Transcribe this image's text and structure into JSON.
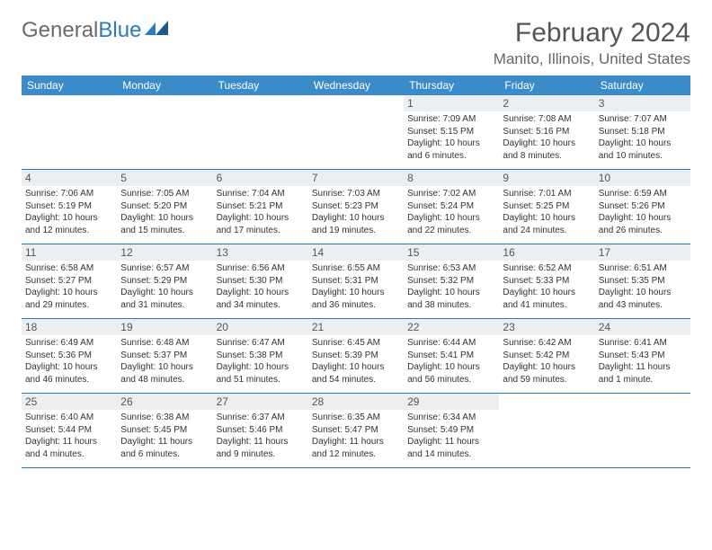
{
  "brand": {
    "part1": "General",
    "part2": "Blue"
  },
  "title": {
    "month_year": "February 2024",
    "location": "Manito, Illinois, United States"
  },
  "colors": {
    "header_bg": "#3b8bc8",
    "accent": "#2c7bbf",
    "daynum_bg": "#eceff1"
  },
  "weekdays": [
    "Sunday",
    "Monday",
    "Tuesday",
    "Wednesday",
    "Thursday",
    "Friday",
    "Saturday"
  ],
  "weeks": [
    [
      {
        "n": "",
        "sr": "",
        "ss": "",
        "dl1": "",
        "dl2": ""
      },
      {
        "n": "",
        "sr": "",
        "ss": "",
        "dl1": "",
        "dl2": ""
      },
      {
        "n": "",
        "sr": "",
        "ss": "",
        "dl1": "",
        "dl2": ""
      },
      {
        "n": "",
        "sr": "",
        "ss": "",
        "dl1": "",
        "dl2": ""
      },
      {
        "n": "1",
        "sr": "Sunrise: 7:09 AM",
        "ss": "Sunset: 5:15 PM",
        "dl1": "Daylight: 10 hours",
        "dl2": "and 6 minutes."
      },
      {
        "n": "2",
        "sr": "Sunrise: 7:08 AM",
        "ss": "Sunset: 5:16 PM",
        "dl1": "Daylight: 10 hours",
        "dl2": "and 8 minutes."
      },
      {
        "n": "3",
        "sr": "Sunrise: 7:07 AM",
        "ss": "Sunset: 5:18 PM",
        "dl1": "Daylight: 10 hours",
        "dl2": "and 10 minutes."
      }
    ],
    [
      {
        "n": "4",
        "sr": "Sunrise: 7:06 AM",
        "ss": "Sunset: 5:19 PM",
        "dl1": "Daylight: 10 hours",
        "dl2": "and 12 minutes."
      },
      {
        "n": "5",
        "sr": "Sunrise: 7:05 AM",
        "ss": "Sunset: 5:20 PM",
        "dl1": "Daylight: 10 hours",
        "dl2": "and 15 minutes."
      },
      {
        "n": "6",
        "sr": "Sunrise: 7:04 AM",
        "ss": "Sunset: 5:21 PM",
        "dl1": "Daylight: 10 hours",
        "dl2": "and 17 minutes."
      },
      {
        "n": "7",
        "sr": "Sunrise: 7:03 AM",
        "ss": "Sunset: 5:23 PM",
        "dl1": "Daylight: 10 hours",
        "dl2": "and 19 minutes."
      },
      {
        "n": "8",
        "sr": "Sunrise: 7:02 AM",
        "ss": "Sunset: 5:24 PM",
        "dl1": "Daylight: 10 hours",
        "dl2": "and 22 minutes."
      },
      {
        "n": "9",
        "sr": "Sunrise: 7:01 AM",
        "ss": "Sunset: 5:25 PM",
        "dl1": "Daylight: 10 hours",
        "dl2": "and 24 minutes."
      },
      {
        "n": "10",
        "sr": "Sunrise: 6:59 AM",
        "ss": "Sunset: 5:26 PM",
        "dl1": "Daylight: 10 hours",
        "dl2": "and 26 minutes."
      }
    ],
    [
      {
        "n": "11",
        "sr": "Sunrise: 6:58 AM",
        "ss": "Sunset: 5:27 PM",
        "dl1": "Daylight: 10 hours",
        "dl2": "and 29 minutes."
      },
      {
        "n": "12",
        "sr": "Sunrise: 6:57 AM",
        "ss": "Sunset: 5:29 PM",
        "dl1": "Daylight: 10 hours",
        "dl2": "and 31 minutes."
      },
      {
        "n": "13",
        "sr": "Sunrise: 6:56 AM",
        "ss": "Sunset: 5:30 PM",
        "dl1": "Daylight: 10 hours",
        "dl2": "and 34 minutes."
      },
      {
        "n": "14",
        "sr": "Sunrise: 6:55 AM",
        "ss": "Sunset: 5:31 PM",
        "dl1": "Daylight: 10 hours",
        "dl2": "and 36 minutes."
      },
      {
        "n": "15",
        "sr": "Sunrise: 6:53 AM",
        "ss": "Sunset: 5:32 PM",
        "dl1": "Daylight: 10 hours",
        "dl2": "and 38 minutes."
      },
      {
        "n": "16",
        "sr": "Sunrise: 6:52 AM",
        "ss": "Sunset: 5:33 PM",
        "dl1": "Daylight: 10 hours",
        "dl2": "and 41 minutes."
      },
      {
        "n": "17",
        "sr": "Sunrise: 6:51 AM",
        "ss": "Sunset: 5:35 PM",
        "dl1": "Daylight: 10 hours",
        "dl2": "and 43 minutes."
      }
    ],
    [
      {
        "n": "18",
        "sr": "Sunrise: 6:49 AM",
        "ss": "Sunset: 5:36 PM",
        "dl1": "Daylight: 10 hours",
        "dl2": "and 46 minutes."
      },
      {
        "n": "19",
        "sr": "Sunrise: 6:48 AM",
        "ss": "Sunset: 5:37 PM",
        "dl1": "Daylight: 10 hours",
        "dl2": "and 48 minutes."
      },
      {
        "n": "20",
        "sr": "Sunrise: 6:47 AM",
        "ss": "Sunset: 5:38 PM",
        "dl1": "Daylight: 10 hours",
        "dl2": "and 51 minutes."
      },
      {
        "n": "21",
        "sr": "Sunrise: 6:45 AM",
        "ss": "Sunset: 5:39 PM",
        "dl1": "Daylight: 10 hours",
        "dl2": "and 54 minutes."
      },
      {
        "n": "22",
        "sr": "Sunrise: 6:44 AM",
        "ss": "Sunset: 5:41 PM",
        "dl1": "Daylight: 10 hours",
        "dl2": "and 56 minutes."
      },
      {
        "n": "23",
        "sr": "Sunrise: 6:42 AM",
        "ss": "Sunset: 5:42 PM",
        "dl1": "Daylight: 10 hours",
        "dl2": "and 59 minutes."
      },
      {
        "n": "24",
        "sr": "Sunrise: 6:41 AM",
        "ss": "Sunset: 5:43 PM",
        "dl1": "Daylight: 11 hours",
        "dl2": "and 1 minute."
      }
    ],
    [
      {
        "n": "25",
        "sr": "Sunrise: 6:40 AM",
        "ss": "Sunset: 5:44 PM",
        "dl1": "Daylight: 11 hours",
        "dl2": "and 4 minutes."
      },
      {
        "n": "26",
        "sr": "Sunrise: 6:38 AM",
        "ss": "Sunset: 5:45 PM",
        "dl1": "Daylight: 11 hours",
        "dl2": "and 6 minutes."
      },
      {
        "n": "27",
        "sr": "Sunrise: 6:37 AM",
        "ss": "Sunset: 5:46 PM",
        "dl1": "Daylight: 11 hours",
        "dl2": "and 9 minutes."
      },
      {
        "n": "28",
        "sr": "Sunrise: 6:35 AM",
        "ss": "Sunset: 5:47 PM",
        "dl1": "Daylight: 11 hours",
        "dl2": "and 12 minutes."
      },
      {
        "n": "29",
        "sr": "Sunrise: 6:34 AM",
        "ss": "Sunset: 5:49 PM",
        "dl1": "Daylight: 11 hours",
        "dl2": "and 14 minutes."
      },
      {
        "n": "",
        "sr": "",
        "ss": "",
        "dl1": "",
        "dl2": ""
      },
      {
        "n": "",
        "sr": "",
        "ss": "",
        "dl1": "",
        "dl2": ""
      }
    ]
  ]
}
